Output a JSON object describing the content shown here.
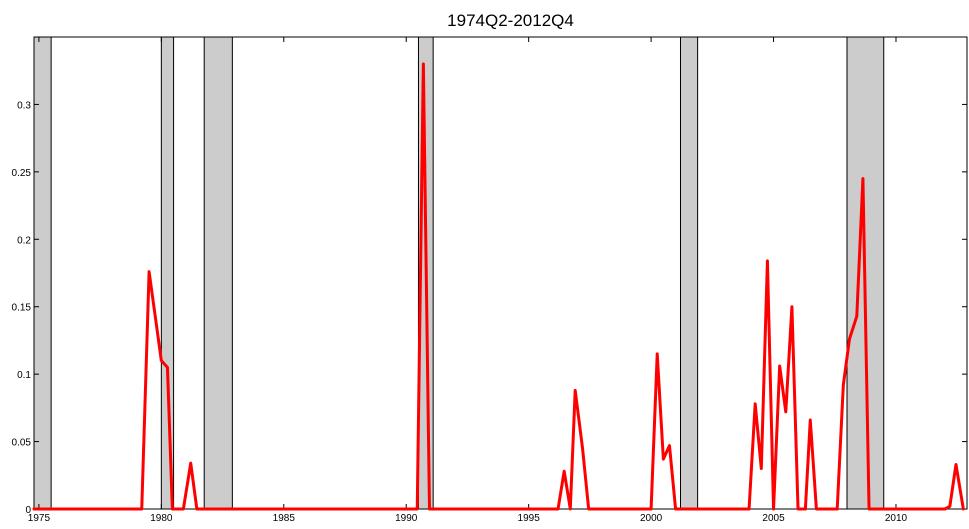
{
  "chart_data": {
    "type": "line",
    "title": "1974Q2-2012Q4",
    "xlabel": "",
    "ylabel": "",
    "xlim": [
      1974.8,
      2012.9
    ],
    "ylim": [
      0,
      0.35
    ],
    "x_ticks": [
      1975,
      1980,
      1985,
      1990,
      1995,
      2000,
      2005,
      2010
    ],
    "x_tick_labels": [
      "1975",
      "1980",
      "1985",
      "1990",
      "1995",
      "2000",
      "2005",
      "2010"
    ],
    "y_ticks": [
      0,
      0.05,
      0.1,
      0.15,
      0.2,
      0.25,
      0.3
    ],
    "y_tick_labels": [
      "0",
      "0.05",
      "0.1",
      "0.15",
      "0.2",
      "0.25",
      "0.3"
    ],
    "grid": false,
    "colors": {
      "line": "#ff0000",
      "recession_fill": "#cccccc",
      "recession_edge": "#000000",
      "axes": "#000000"
    },
    "recession_bands": [
      {
        "start": 1974.8,
        "end": 1975.5
      },
      {
        "start": 1980.0,
        "end": 1980.5
      },
      {
        "start": 1981.75,
        "end": 1982.9
      },
      {
        "start": 1990.5,
        "end": 1991.1
      },
      {
        "start": 2001.2,
        "end": 2001.9
      },
      {
        "start": 2008.0,
        "end": 2009.5
      }
    ],
    "series": [
      {
        "values": [
          [
            1974.8,
            0
          ],
          [
            1979.2,
            0
          ],
          [
            1979.5,
            0.176
          ],
          [
            1979.75,
            0.143
          ],
          [
            1980.0,
            0.11
          ],
          [
            1980.25,
            0.105
          ],
          [
            1980.45,
            0.0
          ],
          [
            1980.9,
            0.0
          ],
          [
            1981.2,
            0.034
          ],
          [
            1981.45,
            0.0
          ],
          [
            1990.45,
            0.0
          ],
          [
            1990.7,
            0.33
          ],
          [
            1990.95,
            0.0
          ],
          [
            1996.2,
            0.0
          ],
          [
            1996.45,
            0.028
          ],
          [
            1996.7,
            0.0
          ],
          [
            1996.9,
            0.088
          ],
          [
            1997.2,
            0.045
          ],
          [
            1997.45,
            0.0
          ],
          [
            2000.0,
            0.0
          ],
          [
            2000.25,
            0.115
          ],
          [
            2000.5,
            0.037
          ],
          [
            2000.75,
            0.047
          ],
          [
            2001.0,
            0.0
          ],
          [
            2004.0,
            0.0
          ],
          [
            2004.25,
            0.078
          ],
          [
            2004.5,
            0.03
          ],
          [
            2004.75,
            0.184
          ],
          [
            2005.0,
            0.0
          ],
          [
            2005.25,
            0.106
          ],
          [
            2005.5,
            0.072
          ],
          [
            2005.75,
            0.15
          ],
          [
            2006.0,
            0.0
          ],
          [
            2006.3,
            0.0
          ],
          [
            2006.5,
            0.066
          ],
          [
            2006.75,
            0.0
          ],
          [
            2007.6,
            0.0
          ],
          [
            2007.85,
            0.092
          ],
          [
            2008.1,
            0.126
          ],
          [
            2008.4,
            0.143
          ],
          [
            2008.65,
            0.245
          ],
          [
            2008.9,
            0.0
          ],
          [
            2012.0,
            0.0
          ],
          [
            2012.2,
            0.002
          ],
          [
            2012.45,
            0.033
          ],
          [
            2012.75,
            0.0
          ]
        ]
      }
    ]
  }
}
